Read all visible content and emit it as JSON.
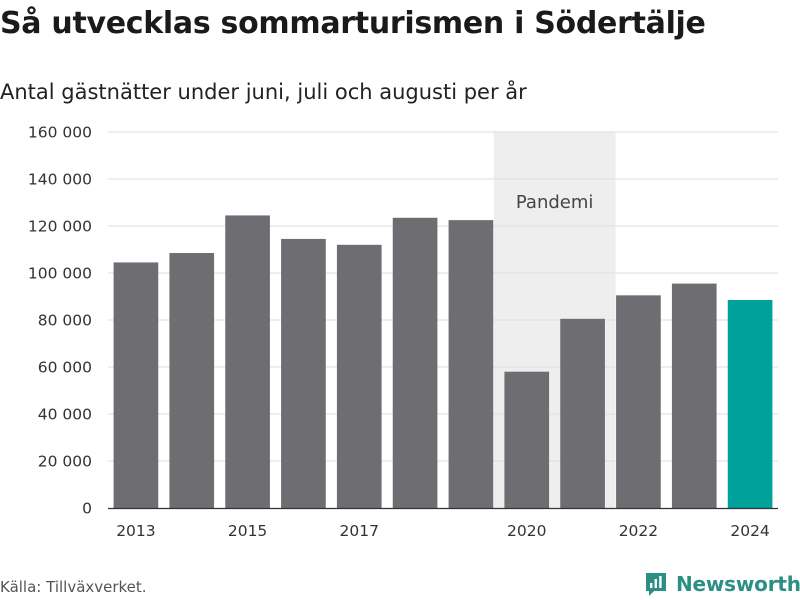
{
  "header": {
    "title": "Så utvecklas sommarturismen i Södertälje",
    "subtitle": "Antal gästnätter under juni, juli och augusti per år"
  },
  "footer": {
    "source": "Källa: Tillväxverket.",
    "brand": "Newsworthy"
  },
  "colors": {
    "bar": "#6e6d72",
    "highlight": "#00a19a",
    "band": "#eeeeee",
    "grid": "#dddddd",
    "brand": "#2b8f84"
  },
  "chart_data": {
    "type": "bar",
    "title": "Så utvecklas sommarturismen i Södertälje",
    "subtitle": "Antal gästnätter under juni, juli och augusti per år",
    "categories": [
      "2013",
      "2014",
      "2015",
      "2016",
      "2017",
      "2018",
      "2019",
      "2020",
      "2021",
      "2022",
      "2023",
      "2024"
    ],
    "values": [
      104500,
      108500,
      124500,
      114500,
      112000,
      123500,
      122500,
      58000,
      80500,
      90500,
      95500,
      88500
    ],
    "highlight_category": "2024",
    "x_tick_labels": [
      "2013",
      "2015",
      "2017",
      "2020",
      "2022",
      "2024"
    ],
    "y_ticks": [
      0,
      20000,
      40000,
      60000,
      80000,
      100000,
      120000,
      140000,
      160000
    ],
    "y_tick_labels": [
      "0",
      "20 000",
      "40 000",
      "60 000",
      "80 000",
      "100 000",
      "120 000",
      "140 000",
      "160 000"
    ],
    "ylim": [
      0,
      160000
    ],
    "grid": true,
    "legend": "none",
    "annotation": {
      "label": "Pandemi",
      "from": "2020",
      "to": "2021"
    }
  }
}
